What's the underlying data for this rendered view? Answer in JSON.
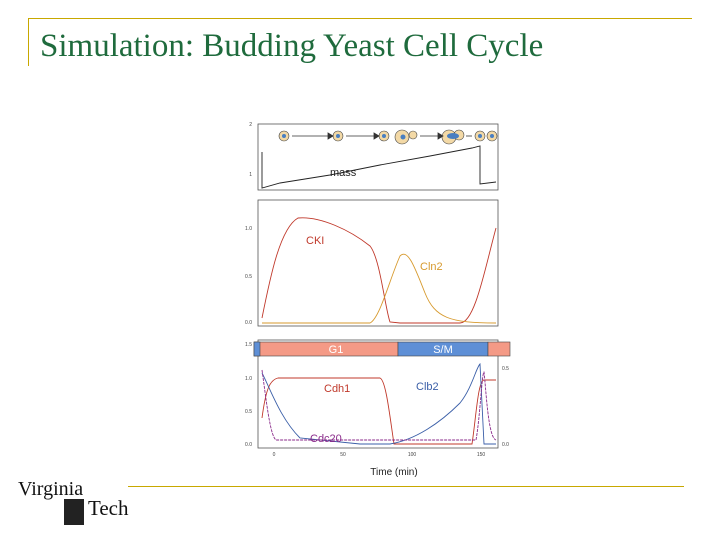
{
  "slide": {
    "title": "Simulation: Budding Yeast Cell Cycle"
  },
  "logo": {
    "line1": "Virginia",
    "line2": "Tech"
  },
  "chart_data": [
    {
      "type": "line",
      "panel": "mass",
      "series": [
        {
          "name": "mass",
          "color": "#222222"
        }
      ],
      "y_ticks": [
        "2",
        "1"
      ]
    },
    {
      "type": "line",
      "panel": "CKI-Cln2",
      "series": [
        {
          "name": "CKI",
          "color": "#c0392b"
        },
        {
          "name": "Cln2",
          "color": "#d79a2e"
        }
      ],
      "y_ticks": [
        "1.0",
        "0.5",
        "0.0"
      ]
    },
    {
      "type": "line",
      "panel": "Cdh1-Clb2-Cdc20",
      "phases": [
        "G1",
        "S/M"
      ],
      "series": [
        {
          "name": "Cdh1",
          "color": "#c0392b"
        },
        {
          "name": "Clb2",
          "color": "#3b5fa8"
        },
        {
          "name": "Cdc20",
          "color": "#8a2a8a"
        }
      ],
      "y_ticks": [
        "1.5",
        "1.0",
        "0.5",
        "0.0"
      ],
      "y_ticks_right": [
        "0.5",
        "0.0"
      ],
      "x_ticks": [
        "0",
        "50",
        "100",
        "150"
      ],
      "xlabel": "Time (min)"
    }
  ]
}
